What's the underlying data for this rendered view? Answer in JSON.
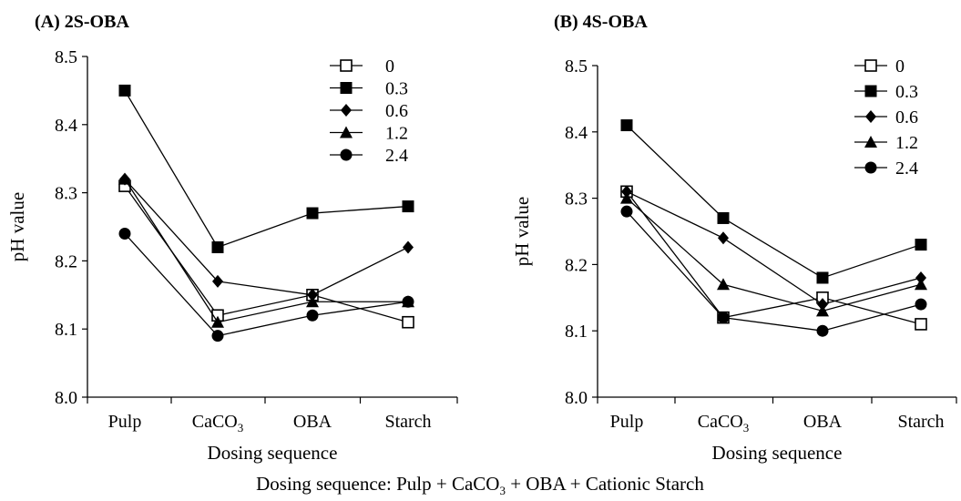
{
  "caption": {
    "parts": [
      "Dosing sequence: Pulp + CaCO",
      "3",
      " + OBA + Cationic Starch"
    ]
  },
  "chart_data": [
    {
      "type": "line",
      "title": "(A) 2S-OBA",
      "xlabel": "Dosing sequence",
      "ylabel": "pH value",
      "categories": [
        {
          "text": "Pulp",
          "sub": ""
        },
        {
          "text": "CaCO",
          "sub": "3"
        },
        {
          "text": "OBA",
          "sub": ""
        },
        {
          "text": "Starch",
          "sub": ""
        }
      ],
      "ylim": [
        8.0,
        8.5
      ],
      "yticks": [
        "8.0",
        "8.1",
        "8.2",
        "8.3",
        "8.4",
        "8.5"
      ],
      "grid": false,
      "legend_position": "top-right",
      "series": [
        {
          "name": "0",
          "marker": "square-open",
          "values": [
            8.31,
            8.12,
            8.15,
            8.11
          ]
        },
        {
          "name": "0.3",
          "marker": "square",
          "values": [
            8.45,
            8.22,
            8.27,
            8.28
          ]
        },
        {
          "name": "0.6",
          "marker": "diamond",
          "values": [
            8.32,
            8.17,
            8.15,
            8.22
          ]
        },
        {
          "name": "1.2",
          "marker": "triangle",
          "values": [
            8.32,
            8.11,
            8.14,
            8.14
          ]
        },
        {
          "name": "2.4",
          "marker": "circle",
          "values": [
            8.24,
            8.09,
            8.12,
            8.14
          ]
        }
      ]
    },
    {
      "type": "line",
      "title": "(B) 4S-OBA",
      "xlabel": "Dosing sequence",
      "ylabel": "pH value",
      "categories": [
        {
          "text": "Pulp",
          "sub": ""
        },
        {
          "text": "CaCO",
          "sub": "3"
        },
        {
          "text": "OBA",
          "sub": ""
        },
        {
          "text": "Starch",
          "sub": ""
        }
      ],
      "ylim": [
        8.0,
        8.5
      ],
      "yticks": [
        "8.0",
        "8.1",
        "8.2",
        "8.3",
        "8.4",
        "8.5"
      ],
      "grid": false,
      "legend_position": "top-right",
      "series": [
        {
          "name": "0",
          "marker": "square-open",
          "values": [
            8.31,
            8.12,
            8.15,
            8.11
          ]
        },
        {
          "name": "0.3",
          "marker": "square",
          "values": [
            8.41,
            8.27,
            8.18,
            8.23
          ]
        },
        {
          "name": "0.6",
          "marker": "diamond",
          "values": [
            8.31,
            8.24,
            8.14,
            8.18
          ]
        },
        {
          "name": "1.2",
          "marker": "triangle",
          "values": [
            8.3,
            8.17,
            8.13,
            8.17
          ]
        },
        {
          "name": "2.4",
          "marker": "circle",
          "values": [
            8.28,
            8.12,
            8.1,
            8.14
          ]
        }
      ]
    }
  ]
}
